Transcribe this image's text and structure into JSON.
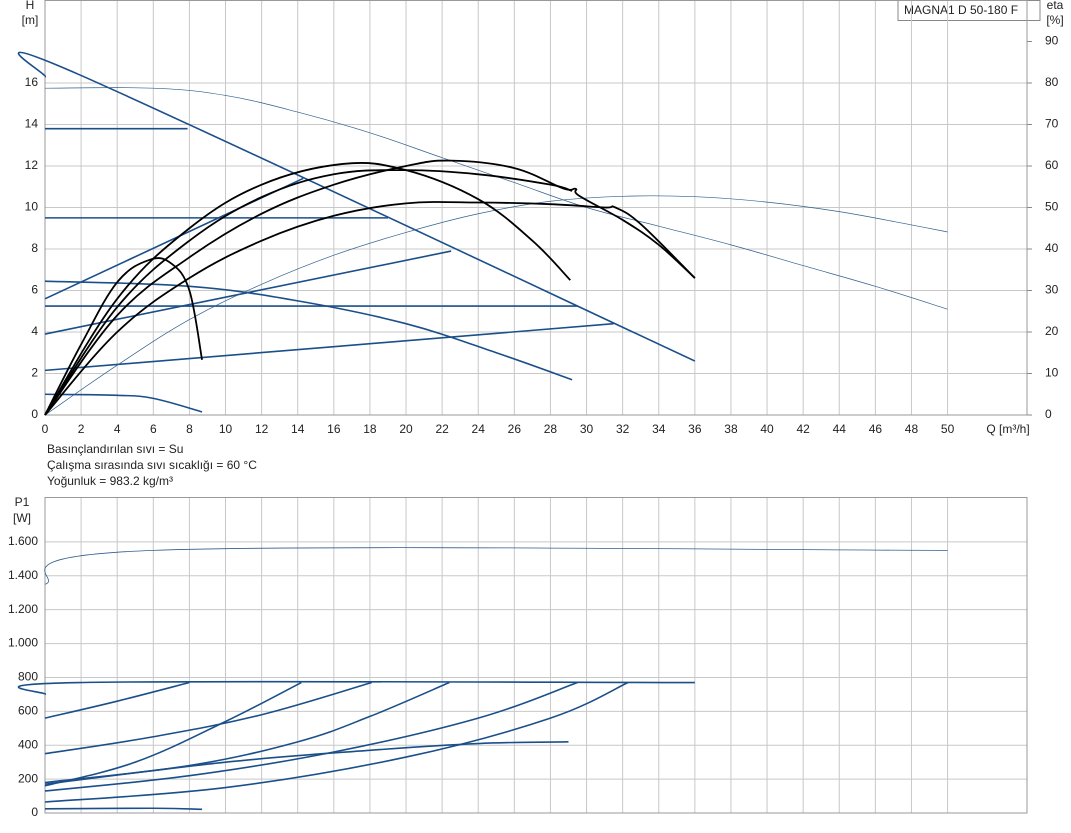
{
  "chart_data": [
    {
      "type": "line",
      "title": "MAGNA1 D 50-180 F",
      "y_label": "H",
      "y_unit": "[m]",
      "y2_label": "eta",
      "y2_unit": "[%]",
      "x_label": "Q [m³/h]",
      "notes": [
        "Basınçlandırılan sıvı = Su",
        "Çalışma sırasında sıvı sıcaklığı = 60 °C",
        "Yoğunluk = 983.2 kg/m³"
      ],
      "xlim": [
        0,
        54.4
      ],
      "ylim": [
        0,
        20
      ],
      "y2lim": [
        0,
        100
      ],
      "xticks": [
        0,
        2,
        4,
        6,
        8,
        10,
        12,
        14,
        16,
        18,
        20,
        22,
        24,
        26,
        28,
        30,
        32,
        34,
        36,
        38,
        40,
        42,
        44,
        46,
        48,
        50
      ],
      "yticks": [
        0,
        2,
        4,
        6,
        8,
        10,
        12,
        14,
        16
      ],
      "y2ticks": [
        0,
        10,
        20,
        30,
        40,
        50,
        60,
        70,
        80,
        90
      ],
      "grid": true,
      "xticklabels": true,
      "series": [
        {
          "color": "#1a4f8a",
          "linewidth": 1.6,
          "x": [
            0,
            1.9,
            36
          ],
          "values": [
            16.3,
            16.4,
            2.6
          ]
        },
        {
          "color": "#1a4f8a",
          "linewidth": 1.6,
          "x": [
            0,
            7.9
          ],
          "values": [
            13.8,
            13.8
          ]
        },
        {
          "color": "#1a4f8a",
          "linewidth": 1.6,
          "x": [
            0,
            19
          ],
          "values": [
            9.5,
            9.5
          ]
        },
        {
          "color": "#1a4f8a",
          "linewidth": 1.6,
          "x": [
            0,
            29.5
          ],
          "values": [
            5.25,
            5.25
          ]
        },
        {
          "color": "#1a4f8a",
          "linewidth": 1.6,
          "x": [
            0,
            14.3
          ],
          "values": [
            5.6,
            11.4
          ]
        },
        {
          "color": "#1a4f8a",
          "linewidth": 1.6,
          "x": [
            0,
            22.5
          ],
          "values": [
            3.9,
            7.9
          ]
        },
        {
          "color": "#1a4f8a",
          "linewidth": 1.6,
          "x": [
            0,
            31.5
          ],
          "values": [
            2.15,
            4.4
          ]
        },
        {
          "color": "#1a4f8a",
          "linewidth": 1.6,
          "x": [
            0,
            8,
            14,
            20,
            25,
            29.2
          ],
          "values": [
            6.45,
            6.2,
            5.5,
            4.4,
            3.0,
            1.7
          ]
        },
        {
          "color": "#1a4f8a",
          "linewidth": 1.6,
          "x": [
            0,
            4,
            6,
            8.7
          ],
          "values": [
            1.0,
            0.95,
            0.8,
            0.15
          ]
        },
        {
          "color": "#2f5f8f",
          "linewidth": 0.7,
          "x": [
            0,
            6,
            10,
            14,
            18,
            22,
            26,
            30,
            34,
            38,
            42,
            46,
            50
          ],
          "values": [
            15.75,
            15.75,
            15.4,
            14.6,
            13.6,
            12.4,
            11.2,
            10.0,
            9.1,
            8.2,
            7.2,
            6.2,
            5.1
          ]
        },
        {
          "color": "#2f5f8f",
          "linewidth": 0.7,
          "axis": "y2",
          "x": [
            0,
            4,
            8,
            12,
            16,
            20,
            24,
            28,
            32,
            36,
            40,
            44,
            48,
            50
          ],
          "values": [
            0,
            12,
            23,
            31.5,
            38.5,
            44,
            48.5,
            51.5,
            52.7,
            52.6,
            51.3,
            49,
            45.8,
            44.1
          ]
        },
        {
          "color": "#000000",
          "linewidth": 1.8,
          "axis": "y2",
          "x": [
            0,
            2,
            4,
            5.8,
            7,
            8,
            8.7
          ],
          "values": [
            0,
            17,
            32,
            37.4,
            36.5,
            30,
            13.3
          ]
        },
        {
          "color": "#000000",
          "linewidth": 1.8,
          "axis": "y2",
          "x": [
            0,
            4,
            8,
            12,
            16.5,
            20,
            24,
            27,
            29.1
          ],
          "values": [
            0,
            28,
            45,
            55.5,
            60.5,
            59,
            52,
            42,
            32.5
          ]
        },
        {
          "color": "#000000",
          "linewidth": 1.8,
          "axis": "y2",
          "x": [
            0,
            4,
            8,
            12,
            16,
            20,
            24,
            28,
            29.2
          ],
          "values": [
            0,
            26,
            42,
            52.5,
            58,
            59,
            58,
            55.5,
            54
          ]
        },
        {
          "color": "#000000",
          "linewidth": 1.8,
          "axis": "y2",
          "x": [
            0,
            4,
            8,
            12,
            16,
            20,
            22.5,
            26,
            28.7,
            29.4,
            29.6,
            32,
            34,
            36
          ],
          "values": [
            0,
            24,
            38,
            48.5,
            55.5,
            60,
            61.3,
            59.5,
            54.6,
            54.5,
            52.8,
            47,
            41,
            33
          ]
        },
        {
          "color": "#000000",
          "linewidth": 1.8,
          "axis": "y2",
          "x": [
            0,
            4,
            8,
            12,
            16,
            20,
            24,
            28,
            31,
            31.6,
            33,
            36
          ],
          "values": [
            0,
            20,
            33,
            42,
            48,
            51,
            51.2,
            50.8,
            50,
            50,
            46,
            33
          ]
        }
      ]
    },
    {
      "type": "line",
      "y_label": "P1",
      "y_unit": "[W]",
      "xlim": [
        0,
        54.4
      ],
      "ylim": [
        0,
        1865
      ],
      "xticks": [
        0,
        2,
        4,
        6,
        8,
        10,
        12,
        14,
        16,
        18,
        20,
        22,
        24,
        26,
        28,
        30,
        32,
        34,
        36,
        38,
        40,
        42,
        44,
        46,
        48,
        50
      ],
      "yticks": [
        0,
        200,
        400,
        600,
        800,
        {
          "value": 1000,
          "label": "1.000"
        },
        {
          "value": 1200,
          "label": "1.200"
        },
        {
          "value": 1400,
          "label": "1.400"
        },
        {
          "value": 1600,
          "label": "1.600"
        }
      ],
      "grid": true,
      "xticklabels": false,
      "series": [
        {
          "color": "#2f5f8f",
          "linewidth": 0.8,
          "x": [
            0,
            6,
            50
          ],
          "values": [
            1350,
            1550,
            1550
          ]
        },
        {
          "color": "#1a4f8a",
          "linewidth": 1.6,
          "x": [
            0,
            1.9,
            36
          ],
          "values": [
            700,
            770,
            770
          ]
        },
        {
          "color": "#1a4f8a",
          "linewidth": 1.6,
          "x": [
            0,
            4,
            8
          ],
          "values": [
            560,
            660,
            770
          ]
        },
        {
          "color": "#1a4f8a",
          "linewidth": 1.6,
          "x": [
            0,
            6,
            12,
            18.1
          ],
          "values": [
            350,
            450,
            580,
            770
          ]
        },
        {
          "color": "#1a4f8a",
          "linewidth": 1.6,
          "x": [
            0,
            5,
            10,
            14.2
          ],
          "values": [
            160,
            300,
            540,
            770
          ]
        },
        {
          "color": "#1a4f8a",
          "linewidth": 1.6,
          "x": [
            0,
            8,
            14,
            18,
            22.4
          ],
          "values": [
            180,
            280,
            420,
            570,
            770
          ]
        },
        {
          "color": "#1a4f8a",
          "linewidth": 1.6,
          "x": [
            0,
            8,
            16,
            24,
            29.5
          ],
          "values": [
            130,
            220,
            360,
            560,
            770
          ]
        },
        {
          "color": "#1a4f8a",
          "linewidth": 1.6,
          "x": [
            0,
            10,
            20,
            28,
            32.3
          ],
          "values": [
            65,
            150,
            330,
            560,
            770
          ]
        },
        {
          "color": "#1a4f8a",
          "linewidth": 1.6,
          "x": [
            0,
            10,
            18,
            24,
            29
          ],
          "values": [
            170,
            300,
            370,
            410,
            420
          ]
        },
        {
          "color": "#1a4f8a",
          "linewidth": 1.6,
          "x": [
            0,
            6,
            8.7
          ],
          "values": [
            25,
            28,
            22
          ]
        }
      ]
    }
  ]
}
